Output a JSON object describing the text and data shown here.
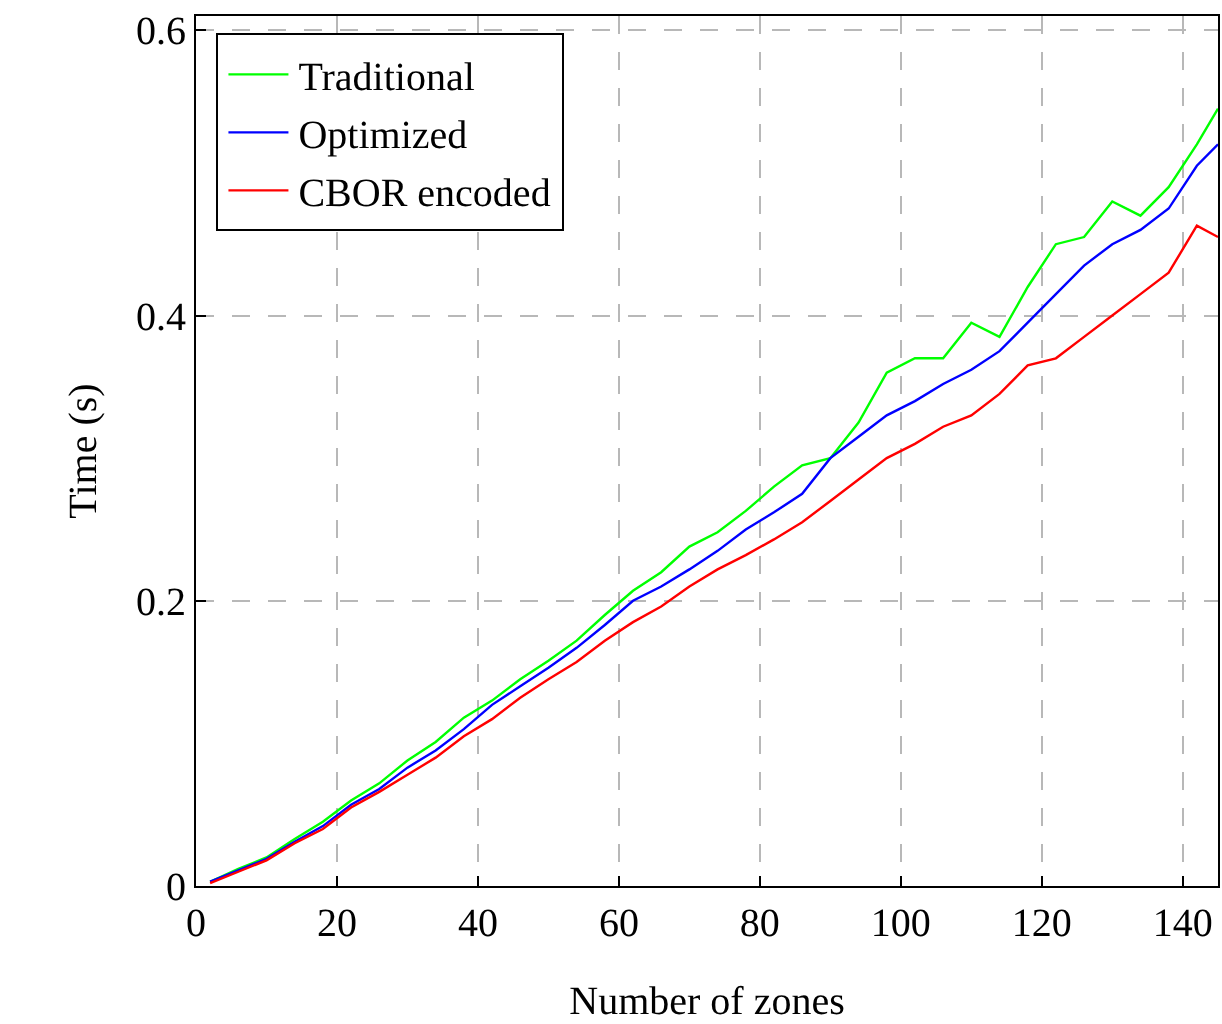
{
  "chart_data": {
    "type": "line",
    "xlabel": "Number of zones",
    "ylabel": "Time (s)",
    "x": [
      2,
      6,
      10,
      14,
      18,
      22,
      26,
      30,
      34,
      38,
      42,
      46,
      50,
      54,
      58,
      62,
      66,
      70,
      74,
      78,
      82,
      86,
      90,
      94,
      98,
      102,
      106,
      110,
      114,
      118,
      122,
      126,
      130,
      134,
      138,
      142,
      145
    ],
    "series": [
      {
        "name": "Traditional",
        "color": "#00ff00",
        "values": [
          0.003,
          0.012,
          0.02,
          0.033,
          0.045,
          0.06,
          0.072,
          0.088,
          0.101,
          0.118,
          0.13,
          0.145,
          0.158,
          0.172,
          0.19,
          0.207,
          0.22,
          0.238,
          0.248,
          0.263,
          0.28,
          0.295,
          0.3,
          0.325,
          0.36,
          0.37,
          0.37,
          0.395,
          0.385,
          0.42,
          0.45,
          0.455,
          0.48,
          0.47,
          0.49,
          0.52,
          0.545
        ]
      },
      {
        "name": "Optimized",
        "color": "#0000ff",
        "values": [
          0.003,
          0.011,
          0.019,
          0.031,
          0.042,
          0.057,
          0.068,
          0.083,
          0.095,
          0.11,
          0.127,
          0.14,
          0.153,
          0.167,
          0.183,
          0.2,
          0.21,
          0.222,
          0.235,
          0.25,
          0.262,
          0.275,
          0.3,
          0.315,
          0.33,
          0.34,
          0.352,
          0.362,
          0.375,
          0.395,
          0.415,
          0.435,
          0.45,
          0.46,
          0.475,
          0.505,
          0.52
        ]
      },
      {
        "name": "CBOR encoded",
        "color": "#ff0000",
        "values": [
          0.002,
          0.01,
          0.018,
          0.03,
          0.04,
          0.055,
          0.066,
          0.078,
          0.09,
          0.105,
          0.117,
          0.132,
          0.145,
          0.157,
          0.172,
          0.185,
          0.196,
          0.21,
          0.222,
          0.232,
          0.243,
          0.255,
          0.27,
          0.285,
          0.3,
          0.31,
          0.322,
          0.33,
          0.345,
          0.365,
          0.37,
          0.385,
          0.4,
          0.415,
          0.43,
          0.463,
          0.455
        ]
      }
    ],
    "xlim": [
      0,
      145
    ],
    "xticks": [
      0,
      20,
      40,
      60,
      80,
      100,
      120,
      140
    ],
    "ylim": [
      0,
      0.61
    ],
    "yticks": [
      0,
      0.2,
      0.4,
      0.6
    ],
    "grid": true,
    "legend": "top left",
    "line_style": "solid",
    "marker": "none"
  }
}
